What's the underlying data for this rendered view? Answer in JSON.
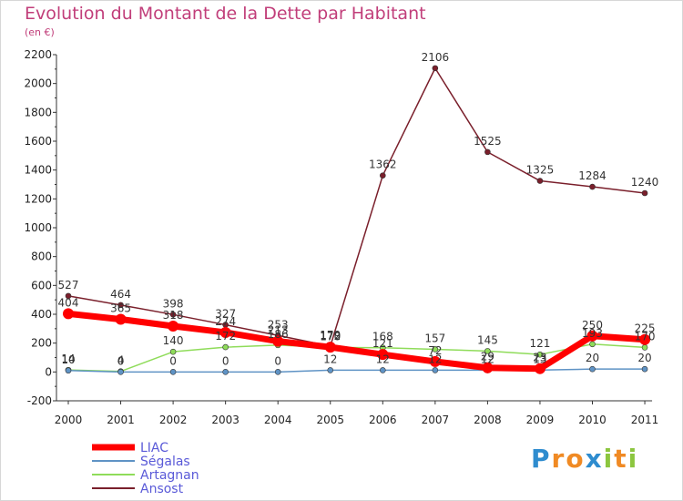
{
  "header": {
    "title": "Evolution du Montant de la Dette par Habitant",
    "subtitle": "(en €)"
  },
  "logo": {
    "letters": [
      {
        "ch": "P",
        "color": "#2e8ccf"
      },
      {
        "ch": "r",
        "color": "#f08a24"
      },
      {
        "ch": "o",
        "color": "#f08a24"
      },
      {
        "ch": "x",
        "color": "#2e8ccf"
      },
      {
        "ch": "i",
        "color": "#8cc63f"
      },
      {
        "ch": "t",
        "color": "#f08a24"
      },
      {
        "ch": "i",
        "color": "#8cc63f"
      }
    ]
  },
  "chart_data": {
    "type": "line",
    "title": "Evolution du Montant de la Dette par Habitant",
    "subtitle": "(en €)",
    "categories": [
      "2000",
      "2001",
      "2002",
      "2003",
      "2004",
      "2005",
      "2006",
      "2007",
      "2008",
      "2009",
      "2010",
      "2011"
    ],
    "ylim": [
      -200,
      2200
    ],
    "yticks": [
      -200,
      0,
      200,
      400,
      600,
      800,
      1000,
      1200,
      1400,
      1600,
      1800,
      2000,
      2200
    ],
    "grid": false,
    "legend_position": "bottom-left",
    "series": [
      {
        "name": "Ansost",
        "color": "#7a1f2b",
        "values": [
          527,
          464,
          398,
          327,
          253,
          179,
          1362,
          2106,
          1525,
          1325,
          1284,
          1240
        ],
        "labels": [
          "527",
          "464",
          "398",
          "327",
          "253",
          "179",
          "1362",
          "2106",
          "1525",
          "1325",
          "1284",
          "1240"
        ]
      },
      {
        "name": "Artagnan",
        "color": "#8fdc5a",
        "values": [
          14,
          4,
          140,
          172,
          186,
          170,
          168,
          157,
          145,
          121,
          193,
          170
        ],
        "labels": [
          "14",
          "4",
          "140",
          "172",
          "186",
          "170",
          "168",
          "157",
          "145",
          "121",
          "193",
          "170"
        ]
      },
      {
        "name": "Ségalas",
        "color": "#5f93c5",
        "values": [
          10,
          0,
          0,
          0,
          0,
          12,
          12,
          12,
          12,
          13,
          20,
          20
        ],
        "labels": [
          "10",
          "0",
          "0",
          "0",
          "0",
          "12",
          "12",
          "12",
          "12",
          "13",
          "20",
          "20"
        ]
      },
      {
        "name": "LIAC",
        "color": "#ff0000",
        "values": [
          404,
          365,
          318,
          274,
          213,
          172,
          121,
          72,
          29,
          23,
          250,
          225
        ],
        "labels": [
          "404",
          "365",
          "318",
          "274",
          "213",
          "172",
          "121",
          "72",
          "29",
          "23",
          "250",
          "225"
        ]
      }
    ],
    "legend_order": [
      "LIAC",
      "Ségalas",
      "Artagnan",
      "Ansost"
    ]
  }
}
